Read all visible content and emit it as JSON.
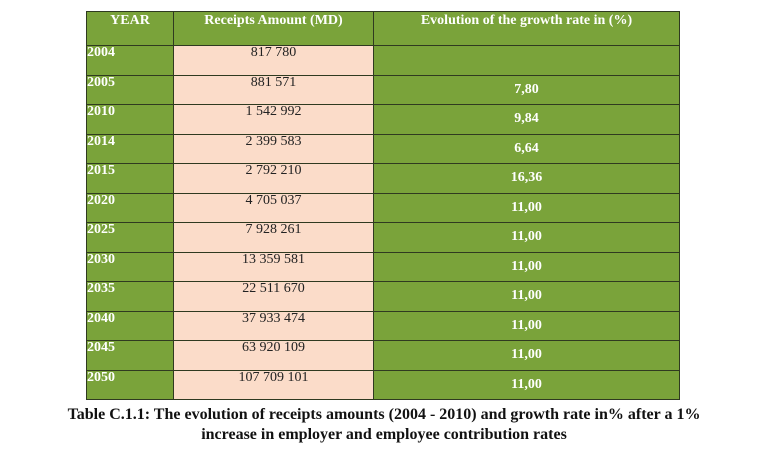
{
  "table": {
    "headers": {
      "year": "YEAR",
      "amount": "Receipts Amount  (MD)",
      "rate": "Evolution of the growth  rate in (%)"
    },
    "rows": [
      {
        "year": "2004",
        "amount": "817 780",
        "rate": ""
      },
      {
        "year": "2005",
        "amount": "881 571",
        "rate": "7,80"
      },
      {
        "year": "2010",
        "amount": "1 542 992",
        "rate": "9,84"
      },
      {
        "year": "2014",
        "amount": "2 399 583",
        "rate": "6,64"
      },
      {
        "year": "2015",
        "amount": "2 792 210",
        "rate": "16,36"
      },
      {
        "year": "2020",
        "amount": "4 705 037",
        "rate": "11,00"
      },
      {
        "year": "2025",
        "amount": "7 928 261",
        "rate": "11,00"
      },
      {
        "year": "2030",
        "amount": "13 359 581",
        "rate": "11,00"
      },
      {
        "year": "2035",
        "amount": "22 511 670",
        "rate": "11,00"
      },
      {
        "year": "2040",
        "amount": "37 933 474",
        "rate": "11,00"
      },
      {
        "year": "2045",
        "amount": "63 920 109",
        "rate": "11,00"
      },
      {
        "year": "2050",
        "amount": "107 709 101",
        "rate": "11,00"
      }
    ]
  },
  "caption": {
    "line1": "Table C.1.1: The evolution of receipts amounts (2004 - 2010) and growth rate in% after a 1%",
    "line2": "increase in employer and employee contribution rates"
  },
  "colors": {
    "header_green": "#7aa33a",
    "amount_peach": "#fbdcc9",
    "border": "#2f3a20"
  }
}
